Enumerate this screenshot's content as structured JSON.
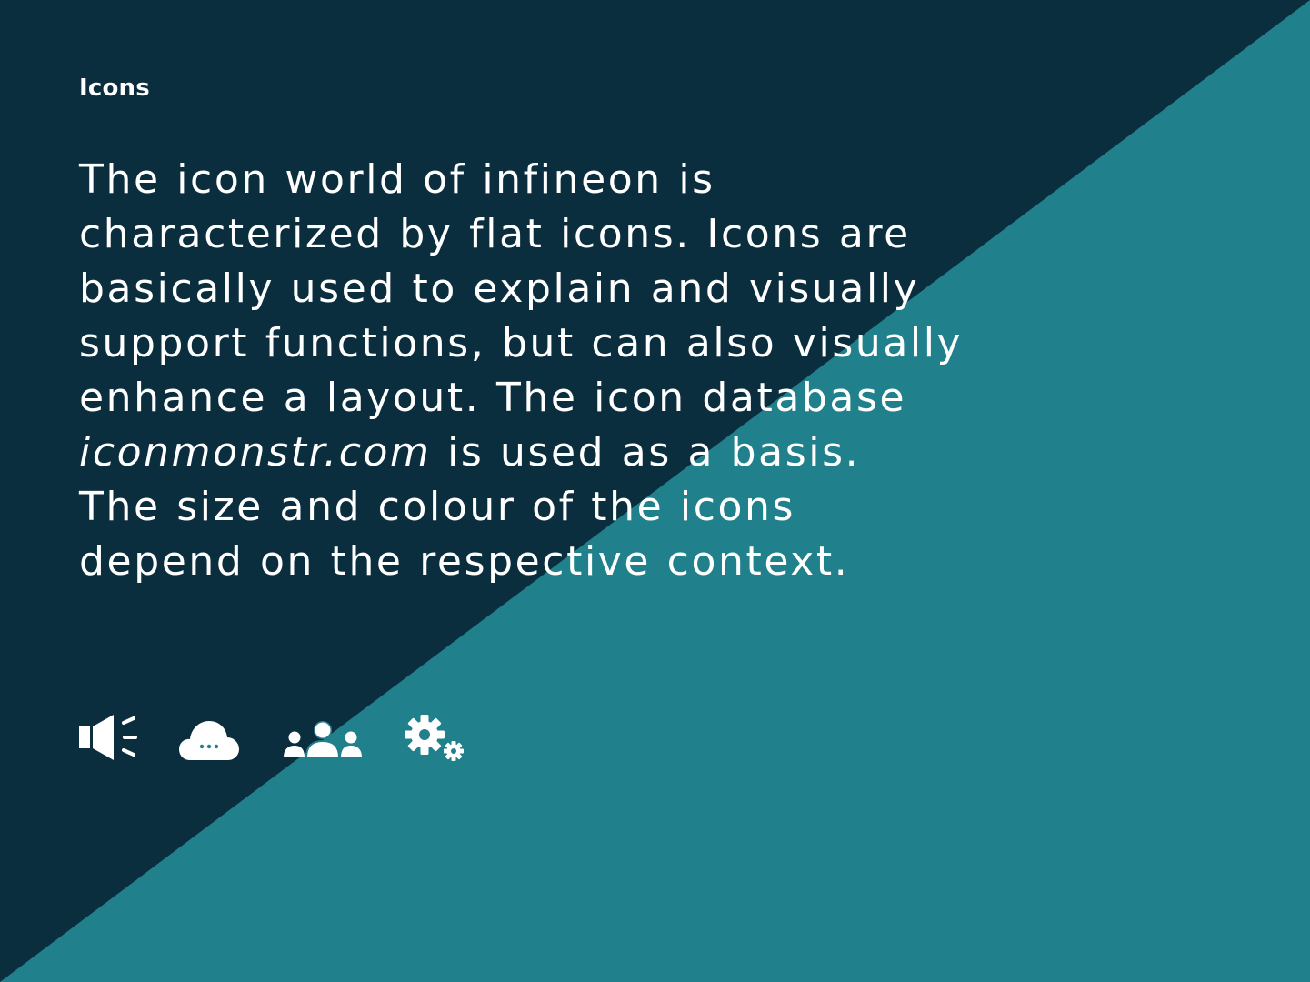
{
  "colors": {
    "dark_panel": "#0b2e3e",
    "teal_panel": "#20808b",
    "text": "#ffffff"
  },
  "header": {
    "label": "Icons"
  },
  "paragraph": {
    "line1": "The icon world of infineon is",
    "line2": "characterized by flat icons. Icons are",
    "line3": "basically used to explain and visually",
    "line4": "support functions, but can also visually",
    "line5": "enhance a layout. The icon database",
    "line6_italic": "iconmonstr.com",
    "line6_rest": " is used as a basis.",
    "line7": "The size and colour of the icons",
    "line8": "depend on the respective context."
  },
  "icons": [
    {
      "name": "megaphone-icon"
    },
    {
      "name": "cloud-chat-icon"
    },
    {
      "name": "users-group-icon"
    },
    {
      "name": "gears-icon"
    }
  ]
}
